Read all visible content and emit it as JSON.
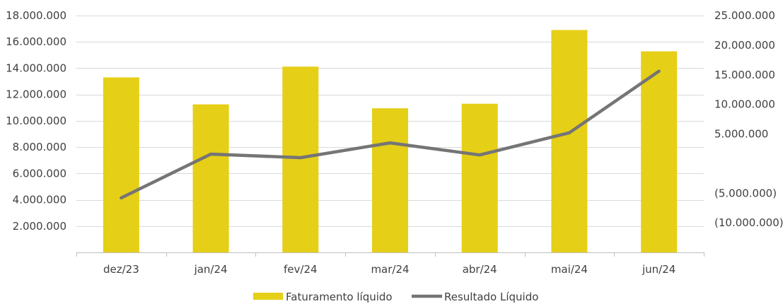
{
  "chart_data": {
    "type": "bar",
    "categories": [
      "dez/23",
      "jan/24",
      "fev/24",
      "mar/24",
      "abr/24",
      "mai/24",
      "jun/24"
    ],
    "series": [
      {
        "name": "Faturamento líquido",
        "type": "bar",
        "axis": "left",
        "color": "#E6CF17",
        "values": [
          13300000,
          11250000,
          14120000,
          10950000,
          11300000,
          16900000,
          15280000
        ]
      },
      {
        "name": "Resultado Líquido",
        "type": "line",
        "axis": "right",
        "color": "#757575",
        "values": [
          -5800000,
          1600000,
          1000000,
          3500000,
          1450000,
          5200000,
          15600000
        ]
      }
    ],
    "left_axis": {
      "ylim": [
        0,
        18000000
      ],
      "tick_values": [
        2000000,
        4000000,
        6000000,
        8000000,
        10000000,
        12000000,
        14000000,
        16000000,
        18000000
      ],
      "tick_labels": [
        "2.000.000",
        "4.000.000",
        "6.000.000",
        "8.000.000",
        "10.000.000",
        "12.000.000",
        "14.000.000",
        "16.000.000",
        "18.000.000"
      ]
    },
    "right_axis": {
      "ylim": [
        -15000000,
        25000000
      ],
      "tick_values": [
        -10000000,
        -5000000,
        5000000,
        10000000,
        15000000,
        20000000,
        25000000
      ],
      "tick_labels": [
        "(10.000.000)",
        "(5.000.000)",
        "5.000.000",
        "10.000.000",
        "15.000.000",
        "20.000.000",
        "25.000.000"
      ]
    },
    "grid": true,
    "legend_position": "bottom"
  }
}
